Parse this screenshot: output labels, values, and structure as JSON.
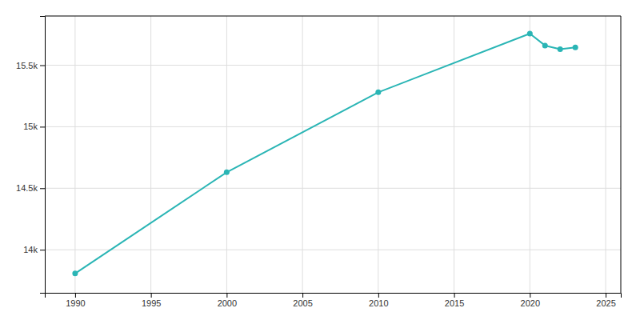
{
  "chart_data": {
    "type": "line",
    "x": [
      1990,
      2000,
      2010,
      2020,
      2021,
      2022,
      2023
    ],
    "values": [
      13807,
      14630,
      15280,
      15757,
      15660,
      15630,
      15645
    ],
    "color": "#2ab5b5",
    "marker": "circle",
    "line_style": "solid",
    "xlim": [
      1988,
      2026
    ],
    "xticks": [
      1990,
      1995,
      2000,
      2005,
      2010,
      2015,
      2020,
      2025
    ],
    "ylim": [
      13650,
      15900
    ],
    "yticks": [
      {
        "value": 14000,
        "label": "14k"
      },
      {
        "value": 14500,
        "label": "14.5k"
      },
      {
        "value": 15000,
        "label": "15k"
      },
      {
        "value": 15500,
        "label": "15.5k"
      }
    ],
    "grid": true
  }
}
